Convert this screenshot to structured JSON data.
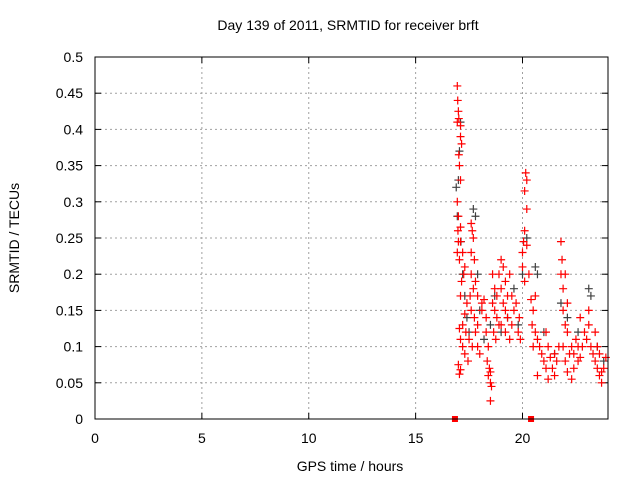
{
  "chart_data": {
    "type": "scatter",
    "title": "Day 139 of 2011, SRMTID for receiver brft",
    "xlabel": "GPS time / hours",
    "ylabel": "SRMTID / TECUs",
    "xlim": [
      0,
      24
    ],
    "ylim": [
      0,
      0.5
    ],
    "xticks": [
      0,
      5,
      10,
      15,
      20
    ],
    "xtick_labels": [
      "0",
      "5",
      "10",
      "15",
      "20"
    ],
    "yticks": [
      0,
      0.05,
      0.1,
      0.15,
      0.2,
      0.25,
      0.3,
      0.35,
      0.4,
      0.45,
      0.5
    ],
    "ytick_labels": [
      "0",
      "0.05",
      "0.1",
      "0.15",
      "0.2",
      "0.25",
      "0.3",
      "0.35",
      "0.4",
      "0.45",
      "0.5"
    ],
    "grid": true,
    "series": [
      {
        "name": "grey",
        "color": "#404040",
        "marker": "plus",
        "points": [
          [
            16.9,
            0.32
          ],
          [
            16.95,
            0.28
          ],
          [
            17.0,
            0.33
          ],
          [
            17.05,
            0.37
          ],
          [
            17.1,
            0.41
          ],
          [
            17.12,
            0.245
          ],
          [
            17.2,
            0.2
          ],
          [
            17.3,
            0.17
          ],
          [
            17.4,
            0.14
          ],
          [
            17.5,
            0.12
          ],
          [
            17.7,
            0.29
          ],
          [
            17.8,
            0.28
          ],
          [
            17.9,
            0.2
          ],
          [
            18.0,
            0.15
          ],
          [
            18.2,
            0.11
          ],
          [
            18.5,
            0.13
          ],
          [
            18.7,
            0.17
          ],
          [
            19.0,
            0.12
          ],
          [
            19.3,
            0.14
          ],
          [
            19.6,
            0.18
          ],
          [
            19.8,
            0.13
          ],
          [
            20.0,
            0.2
          ],
          [
            20.2,
            0.25
          ],
          [
            20.6,
            0.21
          ],
          [
            20.7,
            0.2
          ],
          [
            21.0,
            0.12
          ],
          [
            21.5,
            0.09
          ],
          [
            21.8,
            0.16
          ],
          [
            22.1,
            0.14
          ],
          [
            22.6,
            0.12
          ],
          [
            23.1,
            0.18
          ],
          [
            23.2,
            0.17
          ],
          [
            23.5,
            0.1
          ],
          [
            23.8,
            0.08
          ]
        ]
      },
      {
        "name": "red",
        "color": "#ff0000",
        "marker": "plus",
        "points": [
          [
            16.95,
            0.46
          ],
          [
            16.97,
            0.44
          ],
          [
            17.0,
            0.425
          ],
          [
            17.02,
            0.415
          ],
          [
            16.95,
            0.41
          ],
          [
            17.1,
            0.405
          ],
          [
            17.1,
            0.39
          ],
          [
            17.15,
            0.38
          ],
          [
            17.02,
            0.365
          ],
          [
            17.05,
            0.35
          ],
          [
            17.1,
            0.33
          ],
          [
            16.95,
            0.3
          ],
          [
            17.0,
            0.28
          ],
          [
            17.1,
            0.265
          ],
          [
            16.98,
            0.26
          ],
          [
            17.0,
            0.245
          ],
          [
            17.1,
            0.245
          ],
          [
            17.05,
            0.22
          ],
          [
            16.95,
            0.23
          ],
          [
            17.2,
            0.23
          ],
          [
            17.3,
            0.21
          ],
          [
            17.25,
            0.2
          ],
          [
            17.15,
            0.19
          ],
          [
            17.1,
            0.17
          ],
          [
            17.4,
            0.16
          ],
          [
            17.3,
            0.145
          ],
          [
            17.2,
            0.13
          ],
          [
            17.35,
            0.12
          ],
          [
            17.1,
            0.11
          ],
          [
            17.05,
            0.125
          ],
          [
            17.2,
            0.1
          ],
          [
            17.3,
            0.09
          ],
          [
            17.0,
            0.075
          ],
          [
            17.1,
            0.068
          ],
          [
            17.05,
            0.062
          ],
          [
            17.6,
            0.27
          ],
          [
            17.65,
            0.26
          ],
          [
            17.7,
            0.25
          ],
          [
            17.6,
            0.23
          ],
          [
            17.75,
            0.22
          ],
          [
            17.6,
            0.2
          ],
          [
            17.8,
            0.19
          ],
          [
            17.7,
            0.18
          ],
          [
            17.9,
            0.17
          ],
          [
            17.55,
            0.17
          ],
          [
            17.6,
            0.15
          ],
          [
            17.75,
            0.14
          ],
          [
            17.9,
            0.13
          ],
          [
            17.8,
            0.12
          ],
          [
            17.5,
            0.11
          ],
          [
            17.65,
            0.1
          ],
          [
            17.9,
            0.1
          ],
          [
            18.0,
            0.09
          ],
          [
            18.1,
            0.16
          ],
          [
            18.2,
            0.165
          ],
          [
            18.1,
            0.15
          ],
          [
            18.3,
            0.14
          ],
          [
            18.3,
            0.12
          ],
          [
            18.4,
            0.1
          ],
          [
            18.35,
            0.08
          ],
          [
            18.45,
            0.07
          ],
          [
            18.5,
            0.065
          ],
          [
            18.4,
            0.06
          ],
          [
            18.5,
            0.05
          ],
          [
            18.55,
            0.045
          ],
          [
            18.5,
            0.025
          ],
          [
            18.6,
            0.2
          ],
          [
            18.7,
            0.18
          ],
          [
            18.8,
            0.17
          ],
          [
            18.6,
            0.16
          ],
          [
            18.7,
            0.15
          ],
          [
            18.8,
            0.14
          ],
          [
            18.9,
            0.13
          ],
          [
            18.65,
            0.12
          ],
          [
            18.75,
            0.11
          ],
          [
            19.0,
            0.22
          ],
          [
            19.1,
            0.21
          ],
          [
            19.2,
            0.19
          ],
          [
            19.0,
            0.18
          ],
          [
            19.1,
            0.16
          ],
          [
            19.2,
            0.15
          ],
          [
            19.3,
            0.14
          ],
          [
            19.0,
            0.13
          ],
          [
            19.2,
            0.12
          ],
          [
            19.4,
            0.11
          ],
          [
            19.5,
            0.13
          ],
          [
            19.6,
            0.15
          ],
          [
            19.7,
            0.16
          ],
          [
            19.5,
            0.17
          ],
          [
            19.4,
            0.2
          ],
          [
            19.8,
            0.12
          ],
          [
            19.9,
            0.11
          ],
          [
            19.85,
            0.14
          ],
          [
            20.0,
            0.23
          ],
          [
            20.05,
            0.245
          ],
          [
            20.1,
            0.26
          ],
          [
            20.2,
            0.24
          ],
          [
            20.15,
            0.34
          ],
          [
            20.2,
            0.33
          ],
          [
            20.1,
            0.315
          ],
          [
            20.2,
            0.29
          ],
          [
            20.0,
            0.21
          ],
          [
            20.1,
            0.19
          ],
          [
            20.3,
            0.2
          ],
          [
            20.4,
            0.165
          ],
          [
            20.5,
            0.15
          ],
          [
            20.6,
            0.17
          ],
          [
            20.45,
            0.13
          ],
          [
            20.6,
            0.12
          ],
          [
            20.7,
            0.11
          ],
          [
            20.5,
            0.1
          ],
          [
            20.8,
            0.1
          ],
          [
            20.9,
            0.09
          ],
          [
            21.0,
            0.08
          ],
          [
            20.7,
            0.06
          ],
          [
            21.1,
            0.12
          ],
          [
            21.2,
            0.1
          ],
          [
            21.3,
            0.085
          ],
          [
            21.1,
            0.07
          ],
          [
            21.4,
            0.07
          ],
          [
            21.2,
            0.055
          ],
          [
            21.5,
            0.09
          ],
          [
            21.6,
            0.08
          ],
          [
            21.7,
            0.1
          ],
          [
            21.8,
            0.245
          ],
          [
            21.85,
            0.22
          ],
          [
            21.8,
            0.2
          ],
          [
            21.9,
            0.18
          ],
          [
            22.0,
            0.2
          ],
          [
            22.1,
            0.16
          ],
          [
            21.9,
            0.15
          ],
          [
            22.0,
            0.13
          ],
          [
            22.1,
            0.12
          ],
          [
            21.9,
            0.1
          ],
          [
            22.2,
            0.09
          ],
          [
            22.0,
            0.08
          ],
          [
            22.1,
            0.065
          ],
          [
            22.3,
            0.055
          ],
          [
            22.4,
            0.07
          ],
          [
            22.5,
            0.11
          ],
          [
            22.6,
            0.1
          ],
          [
            22.4,
            0.09
          ],
          [
            22.6,
            0.08
          ],
          [
            22.7,
            0.085
          ],
          [
            22.8,
            0.1
          ],
          [
            22.9,
            0.12
          ],
          [
            23.0,
            0.11
          ],
          [
            23.1,
            0.15
          ],
          [
            23.1,
            0.13
          ],
          [
            23.2,
            0.1
          ],
          [
            23.3,
            0.09
          ],
          [
            23.4,
            0.08
          ],
          [
            23.4,
            0.12
          ],
          [
            23.5,
            0.07
          ],
          [
            23.6,
            0.06
          ],
          [
            23.5,
            0.1
          ],
          [
            23.7,
            0.065
          ],
          [
            23.8,
            0.07
          ],
          [
            23.9,
            0.085
          ],
          [
            23.7,
            0.05
          ],
          [
            23.6,
            0.09
          ],
          [
            22.7,
            0.14
          ],
          [
            22.3,
            0.1
          ],
          [
            21.5,
            0.06
          ],
          [
            18.9,
            0.2
          ],
          [
            19.3,
            0.17
          ],
          [
            17.45,
            0.08
          ]
        ]
      }
    ],
    "markers_at_zero": {
      "color": "#ff0000",
      "marker": "square",
      "x": [
        16.84,
        20.4
      ]
    }
  }
}
